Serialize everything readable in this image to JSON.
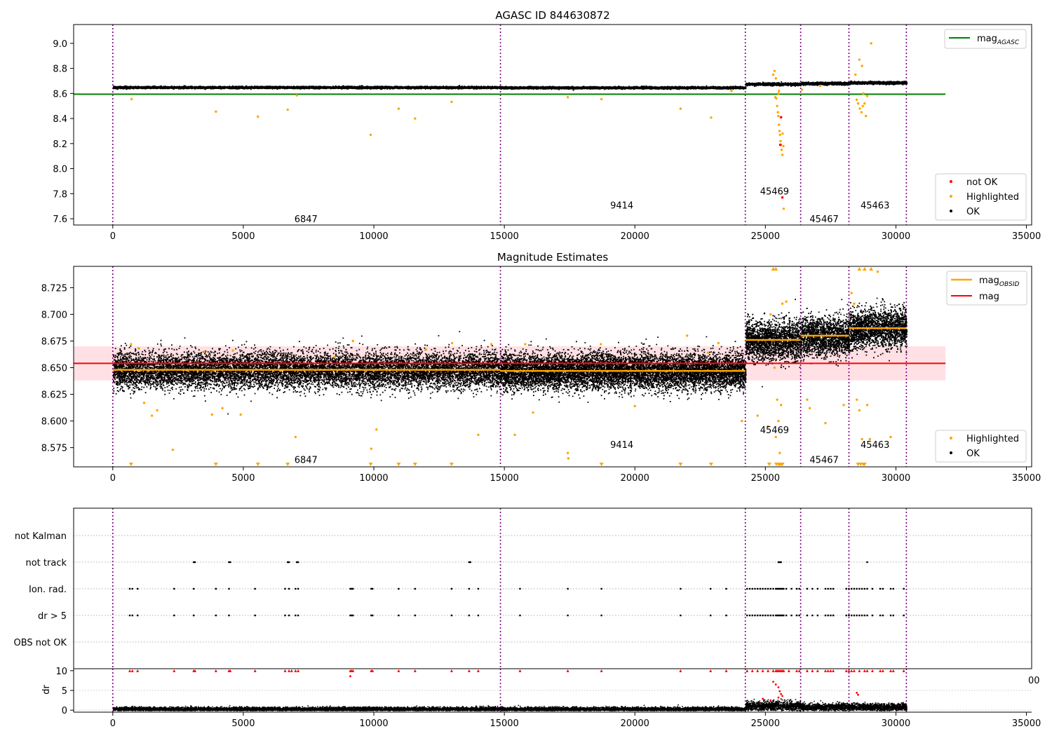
{
  "figure": {
    "background": "#ffffff"
  },
  "chart_data": [
    {
      "id": "top",
      "type": "scatter",
      "title": "AGASC ID 844630872",
      "xlim": [
        -1500,
        35200
      ],
      "ylim": [
        7.55,
        9.15
      ],
      "xticks": [
        0,
        5000,
        10000,
        15000,
        20000,
        25000,
        30000,
        35000
      ],
      "yticks": [
        7.6,
        7.8,
        8.0,
        8.2,
        8.4,
        8.6,
        8.8,
        9.0
      ],
      "ytick_labels": [
        "7.6",
        "7.8",
        "8.0",
        "8.2",
        "8.4",
        "8.6",
        "8.8",
        "9.0"
      ],
      "obs_boundaries": [
        0,
        14850,
        24230,
        26350,
        28200,
        30400
      ],
      "obs_labels": [
        {
          "text": "6847",
          "x": 7400,
          "y": 7.6
        },
        {
          "text": "9414",
          "x": 19500,
          "y": 7.71
        },
        {
          "text": "45469",
          "x": 25350,
          "y": 7.82
        },
        {
          "text": "45467",
          "x": 27250,
          "y": 7.6
        },
        {
          "text": "45463",
          "x": 29200,
          "y": 7.71
        }
      ],
      "segments": [
        {
          "x0": 0,
          "x1": 14850,
          "mean": 8.652,
          "spread": 0.004
        },
        {
          "x0": 14850,
          "x1": 24230,
          "mean": 8.65,
          "spread": 0.004
        },
        {
          "x0": 24230,
          "x1": 26350,
          "mean": 8.678,
          "spread": 0.005
        },
        {
          "x0": 26350,
          "x1": 28200,
          "mean": 8.683,
          "spread": 0.005
        },
        {
          "x0": 28200,
          "x1": 30400,
          "mean": 8.689,
          "spread": 0.005
        }
      ],
      "hlines": [
        {
          "name": "mag_AGASC",
          "y": 8.594,
          "x0": -1500,
          "x1": 31900,
          "color": "#008000"
        }
      ],
      "highlighted": [
        [
          720,
          8.555
        ],
        [
          3950,
          8.455
        ],
        [
          5560,
          8.415
        ],
        [
          6700,
          8.47
        ],
        [
          7050,
          8.585
        ],
        [
          9880,
          8.27
        ],
        [
          10950,
          8.478
        ],
        [
          11580,
          8.4
        ],
        [
          12980,
          8.533
        ],
        [
          17430,
          8.57
        ],
        [
          18720,
          8.555
        ],
        [
          21750,
          8.478
        ],
        [
          22920,
          8.407
        ],
        [
          23700,
          8.62
        ],
        [
          25300,
          8.75
        ],
        [
          25350,
          8.78
        ],
        [
          25400,
          8.72
        ],
        [
          25420,
          8.56
        ],
        [
          25450,
          8.5
        ],
        [
          25480,
          8.45
        ],
        [
          25500,
          8.42
        ],
        [
          25520,
          8.35
        ],
        [
          25540,
          8.3
        ],
        [
          25560,
          8.27
        ],
        [
          25580,
          8.22
        ],
        [
          25600,
          8.19
        ],
        [
          25620,
          8.15
        ],
        [
          25650,
          8.11
        ],
        [
          25500,
          8.6
        ],
        [
          25700,
          7.68
        ],
        [
          25380,
          8.57
        ],
        [
          25520,
          8.62
        ],
        [
          25660,
          8.28
        ],
        [
          25690,
          8.18
        ],
        [
          28600,
          8.87
        ],
        [
          28700,
          8.82
        ],
        [
          28500,
          8.55
        ],
        [
          28550,
          8.52
        ],
        [
          28620,
          8.48
        ],
        [
          28680,
          8.45
        ],
        [
          28730,
          8.5
        ],
        [
          28800,
          8.52
        ],
        [
          28850,
          8.42
        ],
        [
          28900,
          8.58
        ],
        [
          29050,
          9.0
        ],
        [
          28450,
          8.75
        ],
        [
          28750,
          8.6
        ],
        [
          26400,
          8.63
        ],
        [
          27100,
          8.66
        ]
      ],
      "not_ok": [
        [
          25600,
          8.41
        ],
        [
          25570,
          8.19
        ],
        [
          25650,
          7.77
        ]
      ],
      "legend_top": [
        {
          "label": "mag",
          "sub": "AGASC",
          "color": "#008000"
        }
      ],
      "legend_bottom": [
        {
          "label": "not OK",
          "color": "#ff0000"
        },
        {
          "label": "Highlighted",
          "color": "#ffa500"
        },
        {
          "label": "OK",
          "color": "#000000"
        }
      ]
    },
    {
      "id": "middle",
      "type": "scatter",
      "title": "Magnitude Estimates",
      "xlim": [
        -1500,
        35200
      ],
      "ylim": [
        8.557,
        8.745
      ],
      "xticks": [
        0,
        5000,
        10000,
        15000,
        20000,
        25000,
        30000,
        35000
      ],
      "yticks": [
        8.575,
        8.6,
        8.625,
        8.65,
        8.675,
        8.7,
        8.725
      ],
      "ytick_labels": [
        "8.575",
        "8.600",
        "8.625",
        "8.650",
        "8.675",
        "8.700",
        "8.725"
      ],
      "obs_boundaries": [
        0,
        14850,
        24230,
        26350,
        28200,
        30400
      ],
      "obs_labels": [
        {
          "text": "6847",
          "x": 7400,
          "y": 8.564
        },
        {
          "text": "9414",
          "x": 19500,
          "y": 8.578
        },
        {
          "text": "45469",
          "x": 25350,
          "y": 8.592
        },
        {
          "text": "45467",
          "x": 27250,
          "y": 8.564
        },
        {
          "text": "45463",
          "x": 29200,
          "y": 8.578
        }
      ],
      "segments": [
        {
          "x0": 0,
          "x1": 14850,
          "mean": 8.648,
          "spread": 0.0085
        },
        {
          "x0": 14850,
          "x1": 24230,
          "mean": 8.647,
          "spread": 0.0085
        },
        {
          "x0": 24230,
          "x1": 26350,
          "mean": 8.676,
          "spread": 0.009
        },
        {
          "x0": 26350,
          "x1": 28200,
          "mean": 8.68,
          "spread": 0.009
        },
        {
          "x0": 28200,
          "x1": 30400,
          "mean": 8.687,
          "spread": 0.009
        }
      ],
      "obsid_means": [
        {
          "x0": 0,
          "x1": 14850,
          "y": 8.648
        },
        {
          "x0": 14850,
          "x1": 24230,
          "y": 8.647
        },
        {
          "x0": 24230,
          "x1": 26350,
          "y": 8.676
        },
        {
          "x0": 26350,
          "x1": 28200,
          "y": 8.68
        },
        {
          "x0": 28200,
          "x1": 30400,
          "y": 8.687
        }
      ],
      "mag": {
        "y": 8.654,
        "band": [
          8.638,
          8.67
        ],
        "x0": -1500,
        "x1": 31900,
        "color": "#ff0000",
        "band_color": "#ffe0e4"
      },
      "highlighted": [
        [
          700,
          8.672
        ],
        [
          1000,
          8.668
        ],
        [
          1200,
          8.617
        ],
        [
          1500,
          8.605
        ],
        [
          1700,
          8.61
        ],
        [
          2300,
          8.573
        ],
        [
          3500,
          8.665
        ],
        [
          3800,
          8.606
        ],
        [
          4200,
          8.612
        ],
        [
          4600,
          8.666
        ],
        [
          4900,
          8.606
        ],
        [
          7000,
          8.585
        ],
        [
          8500,
          8.66
        ],
        [
          9200,
          8.675
        ],
        [
          9900,
          8.574
        ],
        [
          10100,
          8.592
        ],
        [
          12000,
          8.667
        ],
        [
          13000,
          8.673
        ],
        [
          14000,
          8.587
        ],
        [
          14500,
          8.672
        ],
        [
          15400,
          8.587
        ],
        [
          15800,
          8.672
        ],
        [
          16100,
          8.608
        ],
        [
          17430,
          8.57
        ],
        [
          17450,
          8.565
        ],
        [
          18700,
          8.672
        ],
        [
          20000,
          8.614
        ],
        [
          22000,
          8.68
        ],
        [
          22800,
          8.664
        ],
        [
          23200,
          8.673
        ],
        [
          24100,
          8.6
        ],
        [
          24700,
          8.605
        ],
        [
          25100,
          8.595
        ],
        [
          25350,
          8.65
        ],
        [
          25400,
          8.585
        ],
        [
          25450,
          8.62
        ],
        [
          25500,
          8.6
        ],
        [
          25550,
          8.57
        ],
        [
          25600,
          8.615
        ],
        [
          25650,
          8.71
        ],
        [
          25200,
          8.7
        ],
        [
          25800,
          8.712
        ],
        [
          26600,
          8.62
        ],
        [
          26700,
          8.612
        ],
        [
          27300,
          8.598
        ],
        [
          28000,
          8.615
        ],
        [
          28300,
          8.72
        ],
        [
          28400,
          8.71
        ],
        [
          28500,
          8.62
        ],
        [
          28600,
          8.61
        ],
        [
          28700,
          8.583
        ],
        [
          28900,
          8.615
        ],
        [
          29000,
          8.583
        ],
        [
          29300,
          8.74
        ],
        [
          29800,
          8.585
        ]
      ],
      "lower_markers": [
        700,
        3950,
        5560,
        6700,
        9880,
        10950,
        11580,
        12980,
        18720,
        21750,
        22920,
        25150,
        25420,
        25500,
        25550,
        25600,
        25650,
        28550,
        28650,
        28750,
        28800
      ],
      "upper_markers": [
        25300,
        25400,
        28600,
        28800,
        29050
      ],
      "legend_top": [
        {
          "label": "mag",
          "sub": "OBSID",
          "color": "#ffa500"
        },
        {
          "label": "mag",
          "sub": "",
          "color": "#ff0000"
        }
      ],
      "legend_bottom": [
        {
          "label": "Highlighted",
          "color": "#ffa500"
        },
        {
          "label": "OK",
          "color": "#000000"
        }
      ]
    },
    {
      "id": "flags",
      "type": "scatter",
      "xlim": [
        -1500,
        35200
      ],
      "rows": [
        "not Kalman",
        "not track",
        "Ion. rad.",
        "dr > 5",
        "OBS not OK"
      ],
      "obs_boundaries": [
        0,
        14850,
        24230,
        26350,
        28200,
        30400
      ],
      "events": {
        "not track": [
          3100,
          3150,
          4450,
          4500,
          6700,
          6750,
          7050,
          7100,
          13650,
          13700,
          25500,
          25550,
          25600,
          28900
        ],
        "Ion. rad.": [
          650,
          750,
          950,
          2350,
          3100,
          3950,
          4450,
          5450,
          6600,
          6750,
          7000,
          7100,
          9100,
          9150,
          9200,
          9900,
          9950,
          10950,
          11580,
          12980,
          13650,
          14000,
          15600,
          17430,
          18720,
          21750,
          22900,
          23500,
          24300,
          24400,
          24500,
          24600,
          24700,
          24800,
          24900,
          25000,
          25100,
          25200,
          25300,
          25400,
          25450,
          25500,
          25550,
          25600,
          25650,
          25700,
          25800,
          26000,
          26200,
          26300,
          26600,
          26800,
          27000,
          27300,
          27400,
          27500,
          27600,
          28100,
          28200,
          28300,
          28400,
          28500,
          28600,
          28700,
          28800,
          28900,
          29100,
          29400,
          29500,
          29800,
          29900,
          30300
        ],
        "dr > 5": [
          650,
          750,
          950,
          2350,
          3100,
          3950,
          4450,
          5450,
          6600,
          6750,
          7000,
          7100,
          9100,
          9150,
          9200,
          9900,
          9950,
          10950,
          11580,
          12980,
          13650,
          14000,
          15600,
          17430,
          18720,
          21750,
          22900,
          23500,
          24300,
          24400,
          24500,
          24600,
          24700,
          24800,
          24900,
          25000,
          25100,
          25200,
          25300,
          25400,
          25450,
          25500,
          25550,
          25600,
          25650,
          25700,
          25800,
          26000,
          26200,
          26300,
          26600,
          26800,
          27000,
          27300,
          27400,
          27500,
          27600,
          28100,
          28200,
          28300,
          28400,
          28500,
          28600,
          28700,
          28800,
          28900,
          29100,
          29400,
          29500,
          29800,
          29900,
          30300
        ]
      }
    },
    {
      "id": "dr",
      "type": "scatter",
      "xlim": [
        -1500,
        35200
      ],
      "ylim": [
        -0.5,
        10.5
      ],
      "xticks": [
        0,
        5000,
        10000,
        15000,
        20000,
        25000,
        30000,
        35000
      ],
      "yticks": [
        0,
        5,
        10
      ],
      "ylabel": "dr",
      "obs_boundaries": [
        0,
        14850,
        24230,
        26350,
        28200,
        30400
      ],
      "segments": [
        {
          "x0": 0,
          "x1": 24230,
          "mean": 0.4,
          "spread": 0.25
        },
        {
          "x0": 24230,
          "x1": 26350,
          "mean": 1.2,
          "spread": 0.6
        },
        {
          "x0": 26350,
          "x1": 30400,
          "mean": 0.9,
          "spread": 0.45
        }
      ],
      "clipped": [
        650,
        750,
        950,
        2350,
        3100,
        3150,
        3950,
        4450,
        4500,
        5450,
        6600,
        6750,
        6850,
        7000,
        7100,
        9100,
        9150,
        9200,
        9900,
        9950,
        10950,
        11580,
        12980,
        13650,
        14000,
        15600,
        17430,
        18720,
        21750,
        22900,
        23500,
        24300,
        24500,
        24700,
        24900,
        25100,
        25300,
        25400,
        25450,
        25500,
        25550,
        25600,
        25650,
        25700,
        25900,
        26200,
        26300,
        26600,
        26800,
        27000,
        27300,
        27400,
        27500,
        27600,
        28100,
        28200,
        28300,
        28400,
        28600,
        28800,
        28900,
        29100,
        29400,
        29500,
        29800,
        29900,
        30300
      ],
      "red_points": [
        [
          9100,
          8.6
        ],
        [
          25300,
          7.2
        ],
        [
          25400,
          6.5
        ],
        [
          25500,
          5.8
        ],
        [
          25550,
          4.8
        ],
        [
          25600,
          4.1
        ],
        [
          25650,
          3.6
        ],
        [
          25500,
          3.2
        ],
        [
          28500,
          4.4
        ],
        [
          28550,
          3.9
        ],
        [
          24900,
          2.9
        ],
        [
          25200,
          2.5
        ]
      ]
    }
  ],
  "stray_tick_label": "00"
}
